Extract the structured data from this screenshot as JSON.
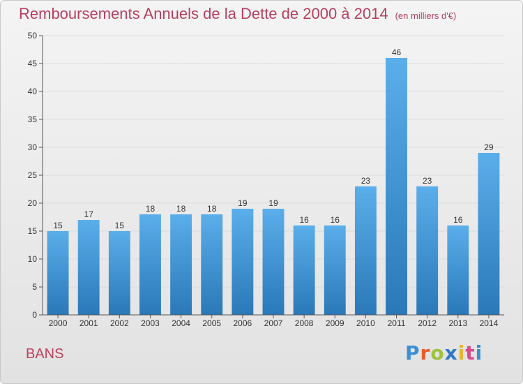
{
  "header": {
    "title": "Remboursements Annuels de la Dette de 2000 à 2014",
    "unit": "(en milliers d'€)"
  },
  "footer": {
    "commune": "BANS",
    "brand_letters": [
      "P",
      "r",
      "o",
      "x",
      "i",
      "t",
      "i"
    ],
    "brand_colors": [
      "#3a8fd6",
      "#e85b2a",
      "#9dc43a",
      "#2e78c8",
      "#e8b52a",
      "#d64a8a",
      "#3a8fd6"
    ]
  },
  "colors": {
    "bar_top": "#5aaeea",
    "bar_bottom": "#2a78b8",
    "grid": "#dcdcdc",
    "axis": "#555555"
  },
  "chart_data": {
    "type": "bar",
    "title": "Remboursements Annuels de la Dette de 2000 à 2014",
    "xlabel": "",
    "ylabel": "",
    "categories": [
      "2000",
      "2001",
      "2002",
      "2003",
      "2004",
      "2005",
      "2006",
      "2007",
      "2008",
      "2009",
      "2010",
      "2011",
      "2012",
      "2013",
      "2014"
    ],
    "values": [
      15,
      17,
      15,
      18,
      18,
      18,
      19,
      19,
      16,
      16,
      23,
      46,
      23,
      16,
      29
    ],
    "ylim": [
      0,
      50
    ],
    "yticks": [
      0,
      5,
      10,
      15,
      20,
      25,
      30,
      35,
      40,
      45,
      50
    ],
    "grid": true,
    "data_labels": true
  }
}
